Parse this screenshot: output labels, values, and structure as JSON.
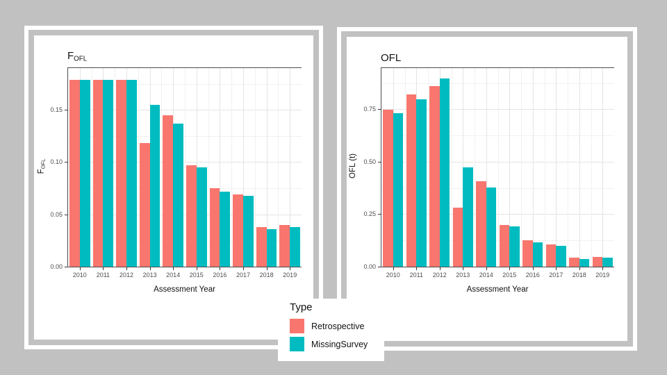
{
  "slide": {
    "background": "#c1c1c1",
    "frame_border": "#ffffff"
  },
  "legend": {
    "title": "Type",
    "items": [
      {
        "label": "Retrospective",
        "color": "#F8766D"
      },
      {
        "label": "MissingSurvey",
        "color": "#00BCC0"
      }
    ]
  },
  "chart_data": [
    {
      "type": "bar",
      "title_main": "F",
      "title_sub": "OFL",
      "xlabel": "Assessment Year",
      "ylabel_main": "F",
      "ylabel_sub": "OFL",
      "categories": [
        "2010",
        "2011",
        "2012",
        "2013",
        "2014",
        "2015",
        "2016",
        "2017",
        "2018",
        "2019"
      ],
      "series": [
        {
          "name": "Retrospective",
          "color": "#F8766D",
          "values": [
            0.179,
            0.179,
            0.179,
            0.118,
            0.145,
            0.097,
            0.075,
            0.069,
            0.038,
            0.04
          ]
        },
        {
          "name": "MissingSurvey",
          "color": "#00BCC0",
          "values": [
            0.179,
            0.179,
            0.179,
            0.155,
            0.137,
            0.095,
            0.072,
            0.068,
            0.036,
            0.038
          ]
        }
      ],
      "ylim": [
        0,
        0.19
      ],
      "ytick_values": [
        0,
        0.05,
        0.1,
        0.15
      ],
      "ytick_labels": [
        "0.00",
        "0.05",
        "0.10",
        "0.15"
      ],
      "grid": true,
      "legend_position": "bottom-center"
    },
    {
      "type": "bar",
      "title_main": "OFL",
      "title_sub": "",
      "xlabel": "Assessment Year",
      "ylabel_main": "OFL (t)",
      "ylabel_sub": "",
      "categories": [
        "2010",
        "2011",
        "2012",
        "2013",
        "2014",
        "2015",
        "2016",
        "2017",
        "2018",
        "2019"
      ],
      "series": [
        {
          "name": "Retrospective",
          "color": "#F8766D",
          "values": [
            0.747,
            0.822,
            0.862,
            0.28,
            0.408,
            0.2,
            0.126,
            0.105,
            0.044,
            0.047
          ]
        },
        {
          "name": "MissingSurvey",
          "color": "#00BCC0",
          "values": [
            0.731,
            0.797,
            0.897,
            0.474,
            0.376,
            0.193,
            0.115,
            0.1,
            0.036,
            0.042
          ]
        }
      ],
      "ylim": [
        0,
        0.947
      ],
      "ytick_values": [
        0,
        0.25,
        0.5,
        0.75
      ],
      "ytick_labels": [
        "0.00",
        "0.25",
        "0.50",
        "0.75"
      ],
      "grid": true,
      "legend_position": "bottom-center"
    }
  ]
}
